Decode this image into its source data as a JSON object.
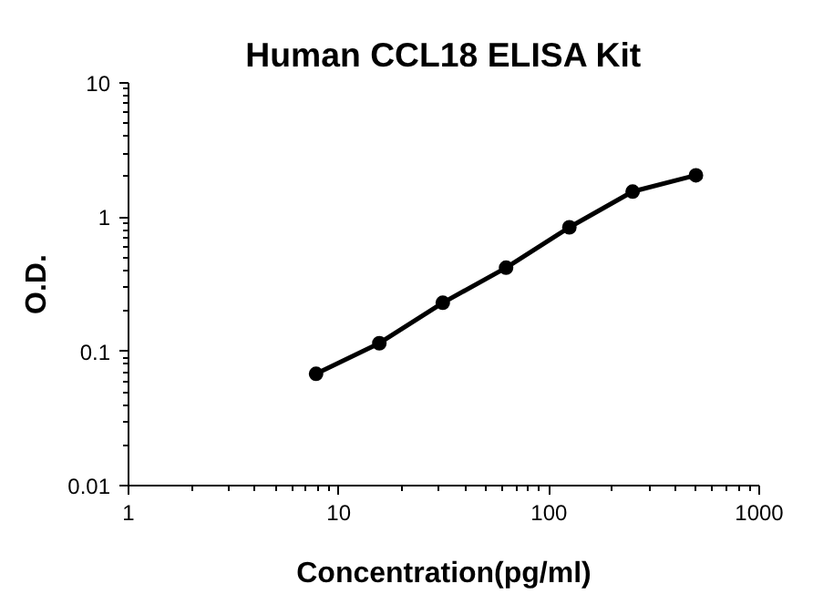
{
  "chart_data": {
    "type": "line",
    "title": "Human CCL18 ELISA Kit",
    "xlabel": "Concentration(pg/ml)",
    "ylabel": "O.D.",
    "x": [
      7.8,
      15.6,
      31.25,
      62.5,
      125,
      250,
      500
    ],
    "series": [
      {
        "color": "#000000",
        "values": [
          0.068,
          0.115,
          0.23,
          0.42,
          0.84,
          1.55,
          2.05
        ]
      }
    ],
    "log": "xy",
    "xlim": [
      1,
      1000
    ],
    "ylim": [
      0.01,
      10
    ],
    "xticks": [
      1,
      10,
      100,
      1000
    ],
    "yticks": [
      0.01,
      0.1,
      1,
      10
    ],
    "marker": "circle",
    "line_style": "solid",
    "grid": false
  }
}
